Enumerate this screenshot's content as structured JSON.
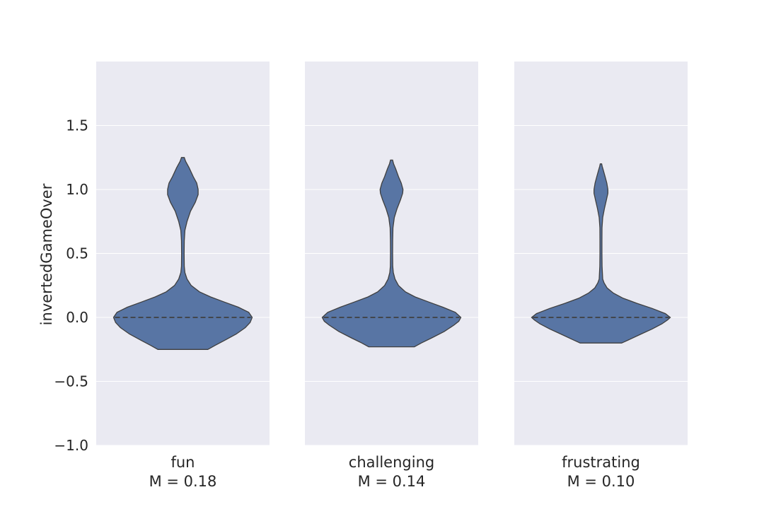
{
  "chart_data": {
    "type": "violin",
    "ylabel": "invertedGameOver",
    "ylim": [
      -1.0,
      2.0
    ],
    "yticks": [
      -1.0,
      -0.5,
      0.0,
      0.5,
      1.0,
      1.5
    ],
    "ytick_labels": [
      "−1.0",
      "−0.5",
      "0.0",
      "0.5",
      "1.0",
      "1.5"
    ],
    "grid": true,
    "panels": [
      {
        "category": "fun",
        "mean_label": "M = 0.18",
        "median": 0.0,
        "range": [
          -0.25,
          1.25
        ],
        "profile": [
          [
            -0.25,
            0.36
          ],
          [
            -0.22,
            0.46
          ],
          [
            -0.18,
            0.6
          ],
          [
            -0.13,
            0.77
          ],
          [
            -0.08,
            0.9
          ],
          [
            -0.04,
            0.97
          ],
          [
            0.0,
            1.0
          ],
          [
            0.04,
            0.95
          ],
          [
            0.08,
            0.8
          ],
          [
            0.12,
            0.6
          ],
          [
            0.16,
            0.4
          ],
          [
            0.2,
            0.24
          ],
          [
            0.25,
            0.12
          ],
          [
            0.3,
            0.06
          ],
          [
            0.35,
            0.03
          ],
          [
            0.4,
            0.02
          ],
          [
            0.5,
            0.018
          ],
          [
            0.6,
            0.02
          ],
          [
            0.68,
            0.03
          ],
          [
            0.75,
            0.06
          ],
          [
            0.83,
            0.11
          ],
          [
            0.9,
            0.18
          ],
          [
            0.96,
            0.22
          ],
          [
            1.0,
            0.22
          ],
          [
            1.05,
            0.2
          ],
          [
            1.1,
            0.15
          ],
          [
            1.17,
            0.09
          ],
          [
            1.22,
            0.04
          ],
          [
            1.25,
            0.02
          ]
        ]
      },
      {
        "category": "challenging",
        "mean_label": "M = 0.14",
        "median": 0.0,
        "range": [
          -0.23,
          1.23
        ],
        "profile": [
          [
            -0.23,
            0.33
          ],
          [
            -0.2,
            0.43
          ],
          [
            -0.16,
            0.58
          ],
          [
            -0.11,
            0.76
          ],
          [
            -0.06,
            0.9
          ],
          [
            -0.03,
            0.97
          ],
          [
            0.0,
            1.0
          ],
          [
            0.04,
            0.92
          ],
          [
            0.08,
            0.74
          ],
          [
            0.12,
            0.54
          ],
          [
            0.16,
            0.34
          ],
          [
            0.2,
            0.2
          ],
          [
            0.25,
            0.1
          ],
          [
            0.3,
            0.05
          ],
          [
            0.35,
            0.025
          ],
          [
            0.4,
            0.017
          ],
          [
            0.5,
            0.015
          ],
          [
            0.6,
            0.016
          ],
          [
            0.7,
            0.02
          ],
          [
            0.78,
            0.04
          ],
          [
            0.85,
            0.08
          ],
          [
            0.92,
            0.13
          ],
          [
            0.97,
            0.16
          ],
          [
            1.0,
            0.165
          ],
          [
            1.05,
            0.14
          ],
          [
            1.1,
            0.1
          ],
          [
            1.16,
            0.06
          ],
          [
            1.2,
            0.03
          ],
          [
            1.23,
            0.015
          ]
        ]
      },
      {
        "category": "frustrating",
        "mean_label": "M = 0.10",
        "median": 0.0,
        "range": [
          -0.2,
          1.2
        ],
        "profile": [
          [
            -0.2,
            0.3
          ],
          [
            -0.17,
            0.42
          ],
          [
            -0.13,
            0.58
          ],
          [
            -0.09,
            0.74
          ],
          [
            -0.05,
            0.88
          ],
          [
            -0.02,
            0.96
          ],
          [
            0.0,
            1.0
          ],
          [
            0.03,
            0.93
          ],
          [
            0.07,
            0.74
          ],
          [
            0.11,
            0.52
          ],
          [
            0.15,
            0.32
          ],
          [
            0.19,
            0.18
          ],
          [
            0.23,
            0.09
          ],
          [
            0.27,
            0.045
          ],
          [
            0.3,
            0.025
          ],
          [
            0.4,
            0.016
          ],
          [
            0.5,
            0.014
          ],
          [
            0.6,
            0.014
          ],
          [
            0.7,
            0.015
          ],
          [
            0.78,
            0.025
          ],
          [
            0.85,
            0.05
          ],
          [
            0.92,
            0.08
          ],
          [
            0.97,
            0.1
          ],
          [
            1.0,
            0.1
          ],
          [
            1.05,
            0.085
          ],
          [
            1.1,
            0.06
          ],
          [
            1.15,
            0.035
          ],
          [
            1.18,
            0.018
          ],
          [
            1.2,
            0.01
          ]
        ]
      }
    ]
  }
}
